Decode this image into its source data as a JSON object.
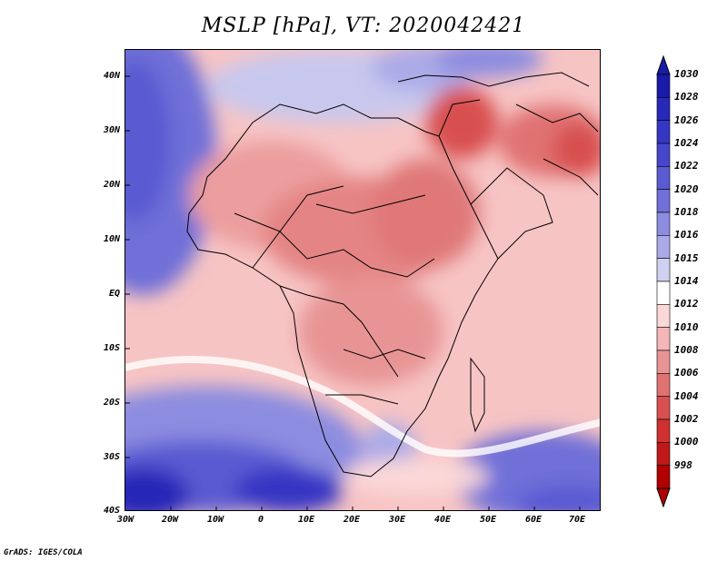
{
  "title": "MSLP [hPa], VT: 2020042421",
  "lat_labels": [
    "40N",
    "30N",
    "20N",
    "10N",
    "EQ",
    "10S",
    "20S",
    "30S",
    "40S"
  ],
  "lon_labels": [
    "30W",
    "20W",
    "10W",
    "0",
    "10E",
    "20E",
    "30E",
    "40E",
    "50E",
    "60E",
    "70E"
  ],
  "colorbar": {
    "levels": [
      "1030",
      "1028",
      "1026",
      "1024",
      "1022",
      "1020",
      "1018",
      "1016",
      "1015",
      "1014",
      "1012",
      "1010",
      "1008",
      "1006",
      "1004",
      "1002",
      "1000",
      "998"
    ],
    "colors": [
      "#1a1aa8",
      "#2828b8",
      "#3636c4",
      "#4646cc",
      "#5a5ad2",
      "#7070d8",
      "#8c8ce0",
      "#aaaae8",
      "#d0d0f0",
      "#ffffff",
      "#fbd8d8",
      "#f4b6b6",
      "#e89494",
      "#e07272",
      "#d85050",
      "#d03030",
      "#c01818",
      "#b00000"
    ]
  },
  "footer": "GrADS: IGES/COLA"
}
